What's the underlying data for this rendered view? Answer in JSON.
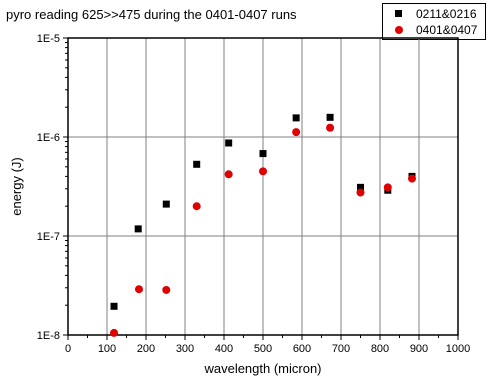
{
  "chart_data": {
    "type": "scatter",
    "title": "pyro reading 625>>475 during the 0401-0407 runs",
    "xlabel": "wavelength (micron)",
    "ylabel": "energy (J)",
    "xlim": [
      0,
      1000
    ],
    "ylim": [
      1e-08,
      1e-05
    ],
    "yscale": "log",
    "x_ticks": [
      "0",
      "100",
      "200",
      "300",
      "400",
      "500",
      "600",
      "700",
      "800",
      "900",
      "1000"
    ],
    "y_ticks": [
      "1E-8",
      "1E-7",
      "1E-6",
      "1E-5"
    ],
    "grid": true,
    "legend_position": "top-right",
    "series": [
      {
        "name": "0211&0216",
        "marker": "square",
        "color": "#000000",
        "points": [
          [
            118,
            1.95e-08
          ],
          [
            180,
            1.18e-07
          ],
          [
            252,
            2.1e-07
          ],
          [
            330,
            5.3e-07
          ],
          [
            412,
            8.7e-07
          ],
          [
            500,
            6.8e-07
          ],
          [
            585,
            1.56e-06
          ],
          [
            672,
            1.58e-06
          ],
          [
            750,
            3.1e-07
          ],
          [
            820,
            2.9e-07
          ],
          [
            882,
            4e-07
          ]
        ]
      },
      {
        "name": "0401&0407",
        "marker": "circle",
        "color": "#e00000",
        "points": [
          [
            118,
            1.05e-08
          ],
          [
            182,
            2.9e-08
          ],
          [
            252,
            2.85e-08
          ],
          [
            330,
            2e-07
          ],
          [
            412,
            4.2e-07
          ],
          [
            500,
            4.5e-07
          ],
          [
            585,
            1.12e-06
          ],
          [
            672,
            1.24e-06
          ],
          [
            750,
            2.75e-07
          ],
          [
            820,
            3.1e-07
          ],
          [
            882,
            3.8e-07
          ]
        ]
      }
    ]
  }
}
